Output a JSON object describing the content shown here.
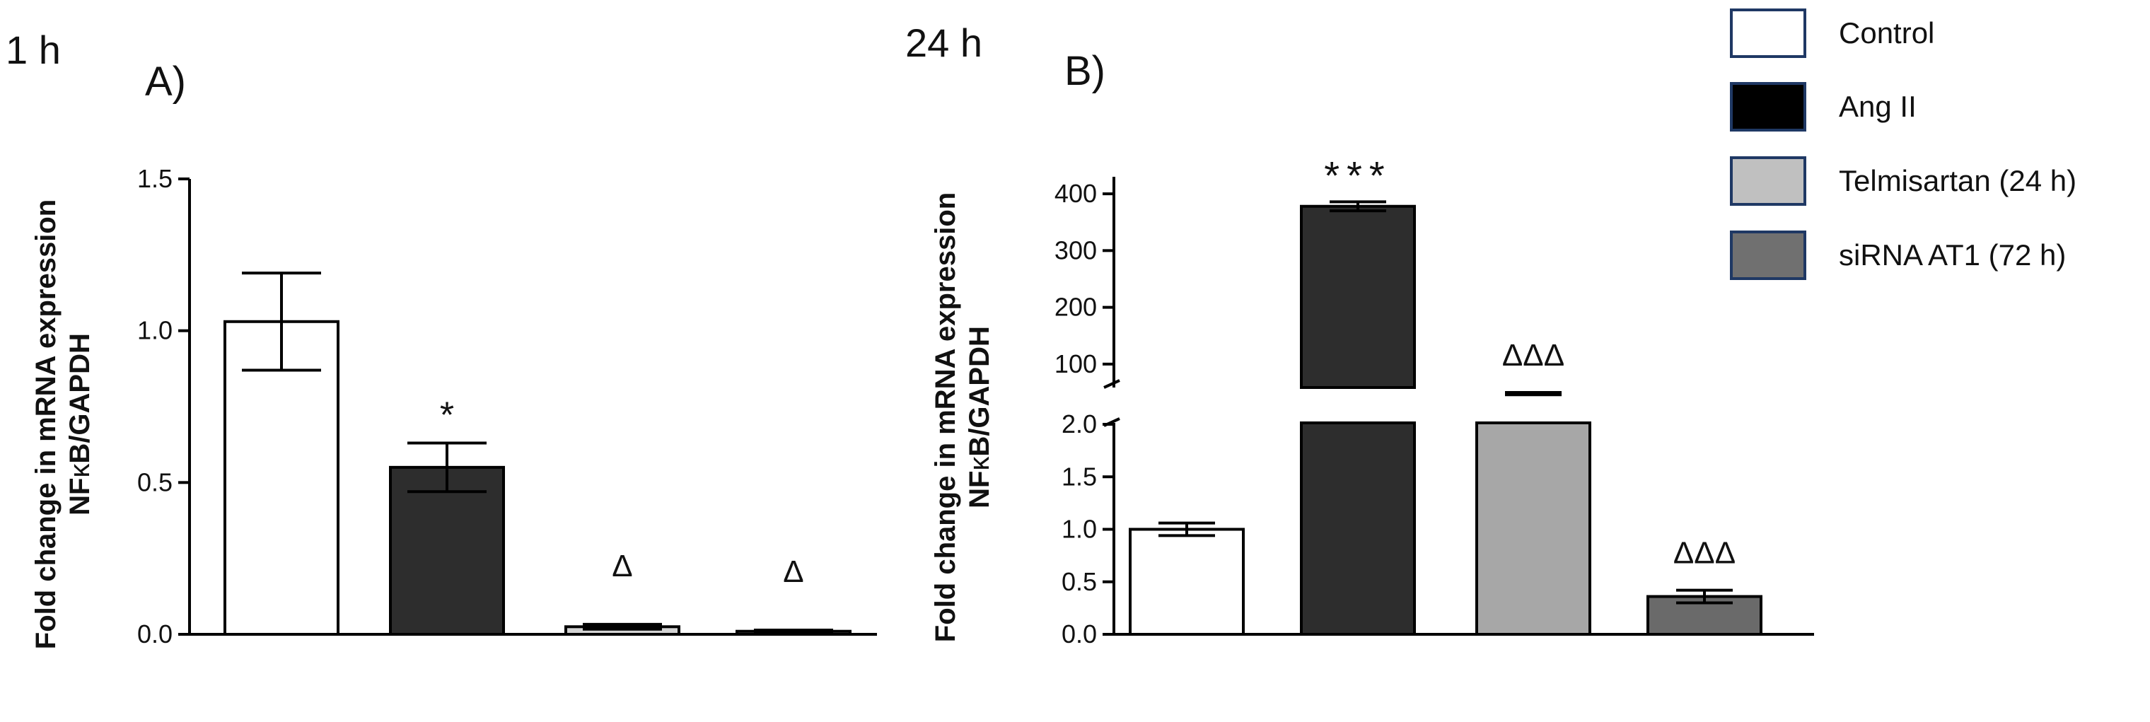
{
  "panel_a": {
    "time_label": "1 h",
    "panel_label": "A)"
  },
  "panel_b": {
    "time_label": "24 h",
    "panel_label": "B)"
  },
  "legend": [
    {
      "label": "Control",
      "color": "#ffffff"
    },
    {
      "label": "Ang II",
      "color": "#000000"
    },
    {
      "label": "Telmisartan (24 h)",
      "color": "#c0c0c0"
    },
    {
      "label": "siRNA AT1 (72 h)",
      "color": "#707070"
    }
  ],
  "colors": {
    "bar_outline": "#000000",
    "legend_outline": "#1f3864",
    "control": "#ffffff",
    "ang_ii": "#2d2d2d",
    "telmisartan_a": "#d3d3d3",
    "telmisartan_b": "#a7a7a7",
    "sirna": "#6a6a6a"
  },
  "chart_data": [
    {
      "type": "bar",
      "ylabel_line1": "Fold change in mRNA expression",
      "ylabel_line2_prefix": "NF",
      "ylabel_line2_kappa": "κ",
      "ylabel_line2_suffix": "B/GAPDH",
      "ylim": [
        0,
        1.5
      ],
      "yticks": [
        "0.0",
        "0.5",
        "1.0",
        "1.5"
      ],
      "series": [
        {
          "category": "Control",
          "value": 1.03,
          "error": 0.16,
          "annotation": ""
        },
        {
          "category": "Ang II",
          "value": 0.55,
          "error": 0.08,
          "annotation": "*"
        },
        {
          "category": "Telmisartan (24 h)",
          "value": 0.025,
          "error": 0.008,
          "annotation": "Δ"
        },
        {
          "category": "siRNA AT1 (72 h)",
          "value": 0.01,
          "error": 0.004,
          "annotation": "Δ"
        }
      ]
    },
    {
      "type": "bar",
      "broken_axis": true,
      "ylabel_line1": "Fold change in mRNA expression",
      "ylabel_line2_prefix": "NF",
      "ylabel_line2_kappa": "κ",
      "ylabel_line2_suffix": "B/GAPDH",
      "lower_ylim": [
        0,
        2.0
      ],
      "lower_yticks": [
        "0.0",
        "0.5",
        "1.0",
        "1.5",
        "2.0"
      ],
      "upper_ylim": [
        50,
        430
      ],
      "upper_yticks": [
        "100",
        "200",
        "300",
        "400"
      ],
      "series": [
        {
          "category": "Control",
          "value": 1.0,
          "error": 0.06,
          "annotation": ""
        },
        {
          "category": "Ang II",
          "value": 378,
          "error": 8,
          "annotation": "***"
        },
        {
          "category": "Telmisartan (24 h)",
          "value": 48,
          "error": 2,
          "annotation": "ΔΔΔ"
        },
        {
          "category": "siRNA AT1 (72 h)",
          "value": 0.36,
          "error": 0.06,
          "annotation": "ΔΔΔ"
        }
      ]
    }
  ]
}
